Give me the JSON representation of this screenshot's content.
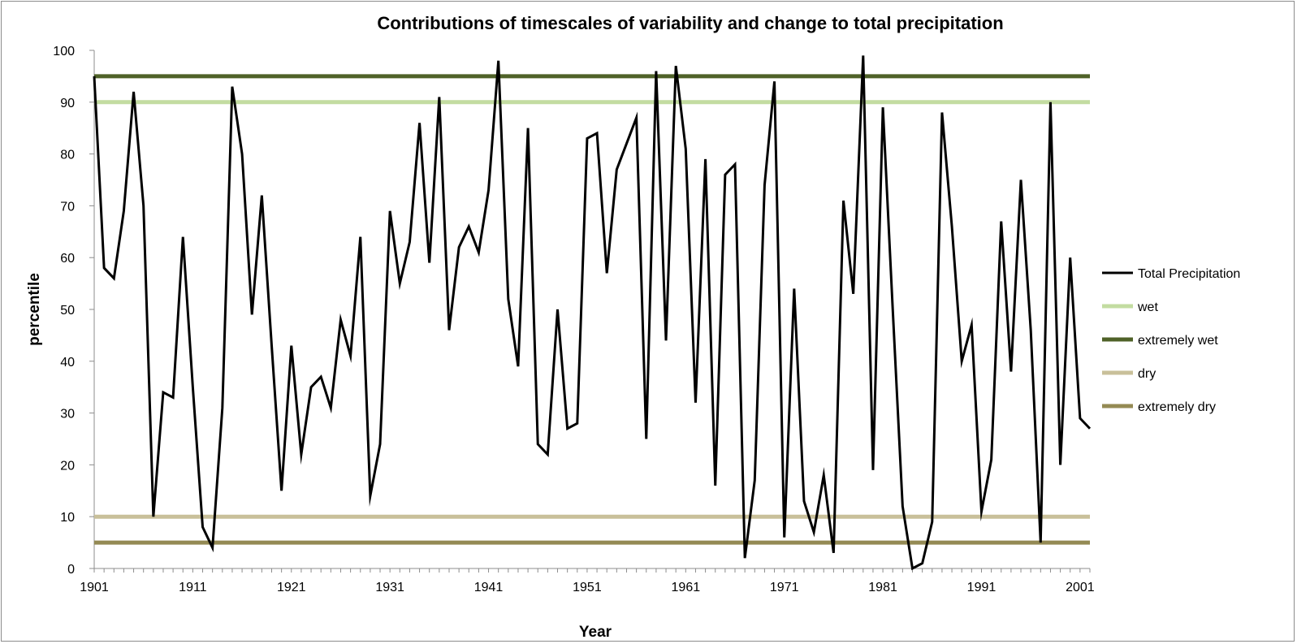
{
  "chart_data": {
    "type": "line",
    "title": "Contributions of timescales of variability and change to total precipitation",
    "xlabel": "Year",
    "ylabel": "percentile",
    "xlim": [
      1901,
      2002
    ],
    "ylim": [
      0,
      100
    ],
    "y_ticks": [
      "0",
      "10",
      "20",
      "30",
      "40",
      "50",
      "60",
      "70",
      "80",
      "90",
      "100"
    ],
    "x_ticks": [
      "1901",
      "1911",
      "1921",
      "1931",
      "1941",
      "1951",
      "1961",
      "1971",
      "1981",
      "1991",
      "2001"
    ],
    "grid": "off",
    "legend_position": "right",
    "series": [
      {
        "name": "Total Precipitation",
        "color": "#000000",
        "x": [
          1901,
          1902,
          1903,
          1904,
          1905,
          1906,
          1907,
          1908,
          1909,
          1910,
          1911,
          1912,
          1913,
          1914,
          1915,
          1916,
          1917,
          1918,
          1919,
          1920,
          1921,
          1922,
          1923,
          1924,
          1925,
          1926,
          1927,
          1928,
          1929,
          1930,
          1931,
          1932,
          1933,
          1934,
          1935,
          1936,
          1937,
          1938,
          1939,
          1940,
          1941,
          1942,
          1943,
          1944,
          1945,
          1946,
          1947,
          1948,
          1949,
          1950,
          1951,
          1952,
          1953,
          1954,
          1955,
          1956,
          1957,
          1958,
          1959,
          1960,
          1961,
          1962,
          1963,
          1964,
          1965,
          1966,
          1967,
          1968,
          1969,
          1970,
          1971,
          1972,
          1973,
          1974,
          1975,
          1976,
          1977,
          1978,
          1979,
          1980,
          1981,
          1982,
          1983,
          1984,
          1985,
          1986,
          1987,
          1988,
          1989,
          1990,
          1991,
          1992,
          1993,
          1994,
          1995,
          1996,
          1997,
          1998,
          1999,
          2000,
          2001,
          2002
        ],
        "values": [
          95,
          58,
          56,
          69,
          92,
          70,
          10,
          34,
          33,
          64,
          35,
          8,
          4,
          31,
          93,
          80,
          49,
          72,
          43,
          15,
          43,
          22,
          35,
          37,
          31,
          48,
          41,
          64,
          14,
          24,
          69,
          55,
          63,
          86,
          59,
          91,
          46,
          62,
          66,
          61,
          73,
          98,
          52,
          39,
          85,
          24,
          22,
          50,
          27,
          28,
          83,
          84,
          57,
          77,
          82,
          87,
          25,
          96,
          44,
          97,
          81,
          32,
          79,
          16,
          76,
          78,
          2,
          17,
          74,
          94,
          6,
          54,
          13,
          7,
          18,
          3,
          71,
          53,
          99,
          19,
          89,
          50,
          12,
          0,
          1,
          9,
          88,
          66,
          40,
          47,
          11,
          21,
          67,
          38,
          75,
          46,
          5,
          90,
          20,
          60,
          29,
          27
        ]
      },
      {
        "name": "wet",
        "color": "#c3dca1",
        "values": [
          90
        ]
      },
      {
        "name": "extremely wet",
        "color": "#4f6228",
        "values": [
          95
        ]
      },
      {
        "name": "dry",
        "color": "#c9c09a",
        "values": [
          10
        ]
      },
      {
        "name": "extremely dry",
        "color": "#948a54",
        "values": [
          5
        ]
      }
    ]
  }
}
